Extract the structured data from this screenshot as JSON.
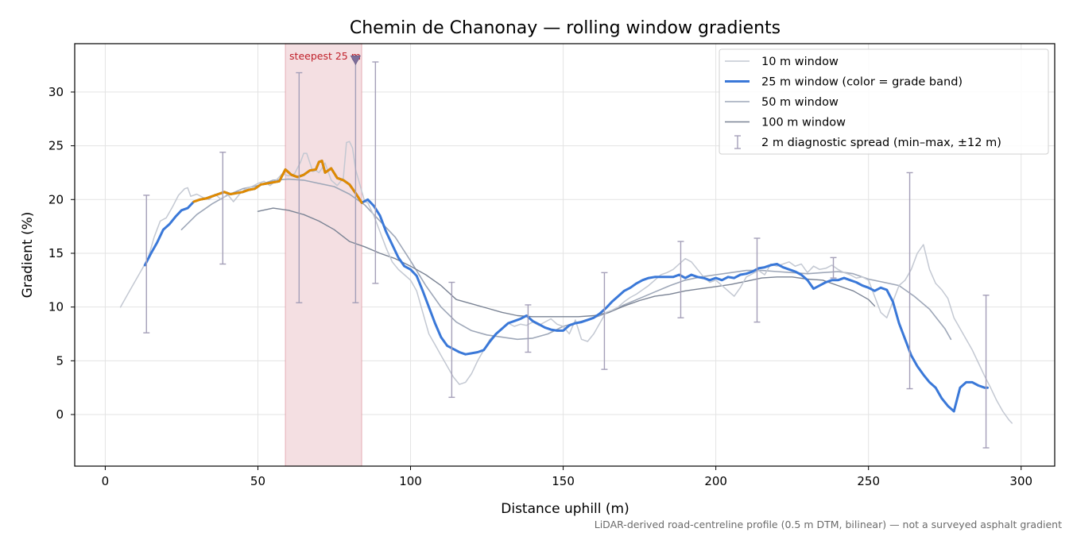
{
  "chart_data": {
    "type": "line",
    "title": "Chemin de Chanonay — rolling window gradients",
    "xlabel": "Distance uphill (m)",
    "ylabel": "Gradient (%)",
    "xlim": [
      -10,
      311
    ],
    "ylim": [
      -4.8,
      34.5
    ],
    "xticks": [
      0,
      50,
      100,
      150,
      200,
      250,
      300
    ],
    "yticks": [
      0,
      5,
      10,
      15,
      20,
      25,
      30
    ],
    "grid": true,
    "legend_position": "top-right",
    "footnote": "LiDAR-derived road-centreline profile (0.5 m DTM, bilinear) — not a surveyed asphalt gradient",
    "highlight": {
      "x_range": [
        59,
        84
      ],
      "label": "steepest 25 m",
      "marker_x": 82,
      "marker_y": 33,
      "color": "#d9838f"
    },
    "grade_band_colors": {
      "moderate": "#3a78d8",
      "steep": "#e08a00",
      "threshold_pct": 20
    },
    "series": [
      {
        "name": "10 m window",
        "color": "#c3c8d2",
        "width": 1.5,
        "x": [
          5,
          8,
          10,
          12,
          14,
          16,
          18,
          20,
          22,
          24,
          26,
          27,
          28,
          30,
          32,
          34,
          36,
          38,
          40,
          42,
          44,
          46,
          48,
          50,
          52,
          54,
          56,
          58,
          60,
          62,
          64,
          65,
          66,
          68,
          69,
          70,
          71,
          72,
          74,
          76,
          78,
          79,
          80,
          81,
          82,
          83,
          85,
          86,
          88,
          90,
          92,
          94,
          96,
          98,
          100,
          102,
          104,
          106,
          108,
          110,
          112,
          114,
          116,
          118,
          120,
          122,
          124,
          126,
          128,
          130,
          132,
          134,
          136,
          138,
          140,
          142,
          144,
          146,
          148,
          150,
          152,
          154,
          156,
          158,
          160,
          162,
          164,
          166,
          168,
          170,
          172,
          174,
          176,
          178,
          180,
          182,
          184,
          186,
          188,
          190,
          192,
          194,
          196,
          198,
          200,
          202,
          204,
          206,
          208,
          210,
          212,
          214,
          216,
          218,
          220,
          222,
          224,
          226,
          228,
          230,
          232,
          234,
          236,
          238,
          240,
          242,
          244,
          246,
          248,
          250,
          252,
          254,
          256,
          258,
          260,
          262,
          264,
          266,
          268,
          270,
          272,
          274,
          276,
          278,
          280,
          282,
          284,
          286,
          288,
          290,
          292,
          294,
          296,
          297
        ],
        "values": [
          10.0,
          11.5,
          12.5,
          13.5,
          14.5,
          16.5,
          18.0,
          18.3,
          19.3,
          20.4,
          21.0,
          21.1,
          20.3,
          20.5,
          20.2,
          20.0,
          20.5,
          20.0,
          20.5,
          19.8,
          20.5,
          21.0,
          21.2,
          21.5,
          21.7,
          21.3,
          21.8,
          22.4,
          22.2,
          22.4,
          23.5,
          24.3,
          24.3,
          22.6,
          22.7,
          22.5,
          22.9,
          23.4,
          21.8,
          21.3,
          22.0,
          25.3,
          25.4,
          24.8,
          22.8,
          21.8,
          19.8,
          19.7,
          18.5,
          17.0,
          15.5,
          14.2,
          13.5,
          13.0,
          12.5,
          11.5,
          9.5,
          7.5,
          6.5,
          5.5,
          4.5,
          3.5,
          2.8,
          3.0,
          3.8,
          5.0,
          6.0,
          7.0,
          7.5,
          8.0,
          8.5,
          8.2,
          8.4,
          8.3,
          8.6,
          8.3,
          8.6,
          8.9,
          8.4,
          8.2,
          7.5,
          8.8,
          7.0,
          6.8,
          7.5,
          8.5,
          9.5,
          9.7,
          10.0,
          10.5,
          10.9,
          11.2,
          11.6,
          12.0,
          12.5,
          13.0,
          13.2,
          13.5,
          14.0,
          14.5,
          14.2,
          13.5,
          12.8,
          12.3,
          12.5,
          12.0,
          11.5,
          11.0,
          11.8,
          12.8,
          13.1,
          13.4,
          13.0,
          14.0,
          13.8,
          14.0,
          14.2,
          13.8,
          14.0,
          13.2,
          13.8,
          13.5,
          13.6,
          13.9,
          13.5,
          13.2,
          13.0,
          12.7,
          12.8,
          12.5,
          11.0,
          9.5,
          9.0,
          10.5,
          12.0,
          12.5,
          13.5,
          15.0,
          15.8,
          13.5,
          12.2,
          11.6,
          10.8,
          9.0,
          8.0,
          7.0,
          6.0,
          4.8,
          3.6,
          2.5,
          1.3,
          0.3,
          -0.5,
          -0.8
        ]
      },
      {
        "name": "25 m window (color = grade band)",
        "color": "#3a78d8",
        "width": 3,
        "x": [
          13,
          15,
          17,
          19,
          21,
          23,
          25,
          27,
          29,
          31,
          33,
          35,
          37,
          39,
          41,
          43,
          45,
          47,
          49,
          51,
          53,
          55,
          57,
          59,
          61,
          63,
          65,
          67,
          69,
          70,
          71,
          72,
          74,
          76,
          78,
          80,
          82,
          84,
          86,
          88,
          90,
          92,
          94,
          96,
          98,
          100,
          102,
          104,
          106,
          108,
          110,
          112,
          114,
          116,
          118,
          120,
          122,
          124,
          126,
          128,
          130,
          132,
          134,
          136,
          138,
          140,
          142,
          144,
          146,
          148,
          150,
          152,
          154,
          156,
          158,
          160,
          162,
          164,
          166,
          168,
          170,
          172,
          174,
          176,
          178,
          180,
          182,
          184,
          186,
          188,
          190,
          192,
          194,
          196,
          198,
          200,
          202,
          204,
          206,
          208,
          210,
          212,
          214,
          216,
          218,
          220,
          222,
          224,
          226,
          228,
          230,
          232,
          234,
          236,
          238,
          240,
          242,
          244,
          246,
          248,
          250,
          252,
          254,
          256,
          258,
          260,
          262,
          264,
          266,
          268,
          270,
          272,
          274,
          276,
          278,
          280,
          282,
          284,
          286,
          288,
          289
        ],
        "values": [
          13.9,
          15.0,
          16.0,
          17.2,
          17.7,
          18.4,
          19.0,
          19.2,
          19.8,
          20.0,
          20.1,
          20.3,
          20.5,
          20.7,
          20.5,
          20.6,
          20.7,
          20.9,
          21.0,
          21.4,
          21.5,
          21.6,
          21.7,
          22.8,
          22.3,
          22.1,
          22.3,
          22.7,
          22.8,
          23.5,
          23.6,
          22.5,
          22.9,
          22.0,
          21.8,
          21.4,
          20.6,
          19.7,
          20.0,
          19.4,
          18.5,
          17.0,
          15.8,
          14.6,
          13.8,
          13.5,
          12.9,
          11.5,
          10.0,
          8.5,
          7.2,
          6.4,
          6.1,
          5.8,
          5.6,
          5.7,
          5.8,
          6.0,
          6.8,
          7.5,
          8.0,
          8.5,
          8.7,
          8.9,
          9.2,
          8.7,
          8.4,
          8.1,
          7.9,
          7.8,
          7.8,
          8.3,
          8.5,
          8.6,
          8.8,
          9.0,
          9.4,
          9.9,
          10.5,
          11.0,
          11.5,
          11.8,
          12.2,
          12.5,
          12.7,
          12.8,
          12.8,
          12.8,
          12.8,
          13.0,
          12.7,
          13.0,
          12.8,
          12.7,
          12.5,
          12.7,
          12.5,
          12.8,
          12.7,
          13.0,
          13.1,
          13.3,
          13.6,
          13.7,
          13.9,
          14.0,
          13.7,
          13.5,
          13.3,
          13.0,
          12.5,
          11.7,
          12.0,
          12.3,
          12.5,
          12.5,
          12.7,
          12.5,
          12.3,
          12.0,
          11.8,
          11.5,
          11.8,
          11.6,
          10.5,
          8.5,
          7.0,
          5.5,
          4.5,
          3.7,
          3.0,
          2.5,
          1.5,
          0.8,
          0.3,
          2.5,
          3.0,
          3.0,
          2.7,
          2.5,
          2.5
        ],
        "steep_ranges": [
          [
            29,
            85
          ]
        ]
      },
      {
        "name": "50 m window",
        "color": "#9ea7b8",
        "width": 1.6,
        "x": [
          25,
          30,
          35,
          40,
          45,
          50,
          55,
          60,
          65,
          70,
          75,
          80,
          85,
          90,
          95,
          100,
          105,
          110,
          115,
          120,
          125,
          130,
          135,
          140,
          145,
          150,
          155,
          160,
          165,
          170,
          175,
          180,
          185,
          190,
          195,
          200,
          205,
          210,
          215,
          220,
          225,
          230,
          235,
          240,
          245,
          250,
          255,
          260,
          265,
          270,
          275,
          277
        ],
        "values": [
          17.2,
          18.6,
          19.6,
          20.4,
          21.0,
          21.3,
          21.8,
          21.9,
          21.8,
          21.5,
          21.2,
          20.5,
          19.5,
          18.0,
          16.5,
          14.3,
          12.0,
          10.0,
          8.6,
          7.8,
          7.4,
          7.2,
          7.0,
          7.1,
          7.5,
          8.2,
          8.6,
          9.0,
          9.5,
          10.2,
          10.8,
          11.4,
          12.0,
          12.5,
          12.8,
          13.0,
          13.2,
          13.4,
          13.4,
          13.3,
          13.2,
          13.1,
          13.2,
          13.3,
          13.1,
          12.6,
          12.3,
          12.0,
          11.0,
          9.8,
          8.0,
          7.0
        ]
      },
      {
        "name": "100 m window",
        "color": "#7a8394",
        "width": 1.4,
        "x": [
          50,
          55,
          60,
          65,
          70,
          75,
          80,
          85,
          90,
          95,
          100,
          105,
          110,
          115,
          120,
          125,
          130,
          135,
          140,
          145,
          150,
          155,
          160,
          165,
          170,
          175,
          180,
          185,
          190,
          195,
          200,
          205,
          210,
          215,
          220,
          225,
          230,
          235,
          240,
          245,
          250,
          252
        ],
        "values": [
          18.9,
          19.2,
          19.0,
          18.6,
          18.0,
          17.2,
          16.1,
          15.6,
          15.0,
          14.5,
          13.8,
          13.0,
          12.0,
          10.7,
          10.3,
          9.9,
          9.5,
          9.2,
          9.1,
          9.1,
          9.1,
          9.1,
          9.2,
          9.5,
          10.1,
          10.6,
          11.0,
          11.2,
          11.5,
          11.7,
          11.9,
          12.1,
          12.4,
          12.7,
          12.8,
          12.8,
          12.6,
          12.5,
          12.0,
          11.5,
          10.7,
          10.1
        ]
      }
    ],
    "diagnostic_spread": {
      "name": "2 m diagnostic spread (min–max, ±12 m)",
      "color": "#a49fb8",
      "x": [
        13.5,
        38.5,
        63.5,
        82,
        88.5,
        113.5,
        138.5,
        163.5,
        188.5,
        213.5,
        238.5,
        263.5,
        288.5
      ],
      "low": [
        7.6,
        14.0,
        10.4,
        10.4,
        12.2,
        1.6,
        5.8,
        4.2,
        9.0,
        8.6,
        12.7,
        2.4,
        -3.1
      ],
      "high": [
        20.4,
        24.4,
        31.8,
        33.0,
        32.8,
        12.3,
        10.2,
        13.2,
        16.1,
        16.4,
        14.6,
        22.5,
        11.1
      ]
    }
  }
}
